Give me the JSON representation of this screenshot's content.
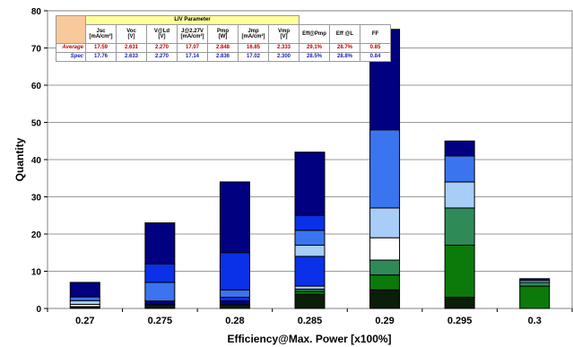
{
  "chart_data": {
    "type": "bar",
    "stacked": true,
    "xlabel": "Efficiency@Max. Power [x100%]",
    "ylabel": "Quantity",
    "ylim": [
      0,
      80
    ],
    "yticks": [
      0,
      10,
      20,
      30,
      40,
      50,
      60,
      70,
      80
    ],
    "categories": [
      "0.27",
      "0.275",
      "0.28",
      "0.285",
      "0.29",
      "0.295",
      "0.3"
    ],
    "grid": true,
    "segments": [
      [
        {
          "value": 0.5,
          "color": "#0a1e0a"
        },
        {
          "value": 0.6,
          "color": "#ffffff"
        },
        {
          "value": 1.0,
          "color": "#a8cdf7"
        },
        {
          "value": 1.0,
          "color": "#3b74ef"
        },
        {
          "value": 3.9,
          "color": "#000080"
        }
      ],
      [
        {
          "value": 1.0,
          "color": "#0a1e0a"
        },
        {
          "value": 1.0,
          "color": "#000080"
        },
        {
          "value": 5.0,
          "color": "#3b74ef"
        },
        {
          "value": 5.0,
          "color": "#0a30e8"
        },
        {
          "value": 11.0,
          "color": "#000080"
        }
      ],
      [
        {
          "value": 1.0,
          "color": "#0a1e0a"
        },
        {
          "value": 1.0,
          "color": "#000080"
        },
        {
          "value": 1.0,
          "color": "#0a30e8"
        },
        {
          "value": 2.0,
          "color": "#3b74ef"
        },
        {
          "value": 10.0,
          "color": "#0a30e8"
        },
        {
          "value": 19.0,
          "color": "#000080"
        }
      ],
      [
        {
          "value": 3.8,
          "color": "#0a1e0a"
        },
        {
          "value": 0.8,
          "color": "#0b7a0b"
        },
        {
          "value": 0.6,
          "color": "#2e8b57"
        },
        {
          "value": 0.8,
          "color": "#a8cdf7"
        },
        {
          "value": 8.0,
          "color": "#0a30e8"
        },
        {
          "value": 3.0,
          "color": "#a8cdf7"
        },
        {
          "value": 4.0,
          "color": "#3b74ef"
        },
        {
          "value": 4.0,
          "color": "#0a30e8"
        },
        {
          "value": 17.0,
          "color": "#000080"
        }
      ],
      [
        {
          "value": 5.0,
          "color": "#0a1e0a"
        },
        {
          "value": 4.0,
          "color": "#0b7a0b"
        },
        {
          "value": 4.0,
          "color": "#2e8b57"
        },
        {
          "value": 6.0,
          "color": "#ffffff"
        },
        {
          "value": 8.0,
          "color": "#a8cdf7"
        },
        {
          "value": 21.0,
          "color": "#3b74ef"
        },
        {
          "value": 27.0,
          "color": "#000080"
        }
      ],
      [
        {
          "value": 3.0,
          "color": "#0a1e0a"
        },
        {
          "value": 14.0,
          "color": "#0b7a0b"
        },
        {
          "value": 10.0,
          "color": "#2e8b57"
        },
        {
          "value": 7.0,
          "color": "#a8cdf7"
        },
        {
          "value": 7.0,
          "color": "#3b74ef"
        },
        {
          "value": 4.0,
          "color": "#000080"
        }
      ],
      [
        {
          "value": 6.0,
          "color": "#0b7a0b"
        },
        {
          "value": 1.0,
          "color": "#2e8b57"
        },
        {
          "value": 0.5,
          "color": "#a8cdf7"
        },
        {
          "value": 0.5,
          "color": "#000080"
        }
      ]
    ]
  },
  "liv_table": {
    "title": "LIV Parameter",
    "headers": [
      [
        "Jsc",
        "[mA/cm²]"
      ],
      [
        "Voc",
        "[V]"
      ],
      [
        "V@Ld",
        "[V]"
      ],
      [
        "J@2.27V",
        "[mA/cm²]"
      ],
      [
        "Pmp",
        "[W]"
      ],
      [
        "Jmp",
        "[mA/cm²]"
      ],
      [
        "Vmp",
        "[V]"
      ],
      [
        "Eff@Pmp",
        ""
      ],
      [
        "Eff @L",
        ""
      ],
      [
        "FF",
        ""
      ]
    ],
    "rows": [
      {
        "label": "Average",
        "values": [
          "17.59",
          "2.631",
          "2.270",
          "17.07",
          "2.848",
          "16.85",
          "2.333",
          "29.1%",
          "28.7%",
          "0.85"
        ]
      },
      {
        "label": "Spec",
        "values": [
          "17.76",
          "2.633",
          "2.270",
          "17.14",
          "2.836",
          "17.02",
          "2.300",
          "28.5%",
          "28.8%",
          "0.84"
        ]
      }
    ]
  }
}
